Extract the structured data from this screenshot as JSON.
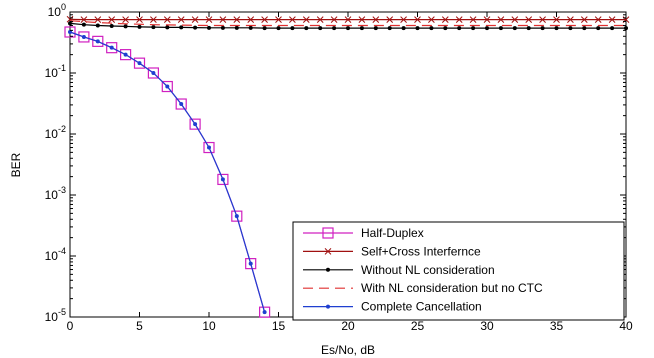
{
  "chart_data": {
    "type": "line",
    "title": "",
    "xlabel": "Es/No, dB",
    "ylabel": "BER",
    "xlim": [
      0,
      40
    ],
    "ylim": [
      1e-05,
      1
    ],
    "yscale": "log",
    "grid": false,
    "legend_position": "bottom-right",
    "x_ticks": [
      0,
      5,
      10,
      15,
      20,
      25,
      30,
      35,
      40
    ],
    "x_tick_labels": [
      "0",
      "5",
      "10",
      "15",
      "20",
      "25",
      "30",
      "35",
      "40"
    ],
    "y_ticks": [
      1e-05,
      0.0001,
      0.001,
      0.01,
      0.1,
      1
    ],
    "y_tick_labels": [
      {
        "base": "10",
        "exp": "-5"
      },
      {
        "base": "10",
        "exp": "-4"
      },
      {
        "base": "10",
        "exp": "-3"
      },
      {
        "base": "10",
        "exp": "-2"
      },
      {
        "base": "10",
        "exp": "-1"
      },
      {
        "base": "10",
        "exp": "0"
      }
    ],
    "series": [
      {
        "name": "Half-Duplex",
        "color": "#d020c0",
        "line_style": "solid",
        "marker": "square",
        "x": [
          0,
          1,
          2,
          3,
          4,
          5,
          6,
          7,
          8,
          9,
          10,
          11,
          12,
          13,
          14
        ],
        "y": [
          0.47,
          0.39,
          0.33,
          0.26,
          0.2,
          0.145,
          0.1,
          0.06,
          0.031,
          0.0145,
          0.006,
          0.0018,
          0.00045,
          7.5e-05,
          1.2e-05
        ]
      },
      {
        "name": "Self+Cross Interfernce",
        "color": "#a01010",
        "line_style": "solid",
        "marker": "x",
        "x": [
          0,
          1,
          2,
          3,
          4,
          5,
          6,
          7,
          8,
          9,
          10,
          11,
          12,
          13,
          14,
          15,
          16,
          17,
          18,
          19,
          20,
          21,
          22,
          23,
          24,
          25,
          26,
          27,
          28,
          29,
          30,
          31,
          32,
          33,
          34,
          35,
          36,
          37,
          38,
          39,
          40
        ],
        "y": [
          0.76,
          0.75,
          0.75,
          0.75,
          0.75,
          0.75,
          0.75,
          0.75,
          0.75,
          0.75,
          0.75,
          0.75,
          0.75,
          0.75,
          0.75,
          0.75,
          0.75,
          0.75,
          0.75,
          0.75,
          0.75,
          0.75,
          0.75,
          0.75,
          0.75,
          0.75,
          0.75,
          0.75,
          0.75,
          0.75,
          0.75,
          0.75,
          0.75,
          0.75,
          0.75,
          0.75,
          0.75,
          0.75,
          0.75,
          0.75,
          0.75
        ]
      },
      {
        "name": "Without NL consideration",
        "color": "#000000",
        "line_style": "solid",
        "marker": "dot",
        "x": [
          0,
          1,
          2,
          3,
          4,
          5,
          6,
          7,
          8,
          9,
          10,
          11,
          12,
          13,
          14,
          15,
          16,
          17,
          18,
          19,
          20,
          21,
          22,
          23,
          24,
          25,
          26,
          27,
          28,
          29,
          30,
          31,
          32,
          33,
          34,
          35,
          36,
          37,
          38,
          39,
          40
        ],
        "y": [
          0.65,
          0.62,
          0.6,
          0.59,
          0.58,
          0.57,
          0.565,
          0.56,
          0.56,
          0.555,
          0.55,
          0.55,
          0.55,
          0.55,
          0.545,
          0.545,
          0.545,
          0.545,
          0.545,
          0.545,
          0.545,
          0.545,
          0.545,
          0.545,
          0.545,
          0.545,
          0.545,
          0.545,
          0.545,
          0.545,
          0.545,
          0.545,
          0.545,
          0.545,
          0.545,
          0.545,
          0.545,
          0.545,
          0.545,
          0.545,
          0.545
        ]
      },
      {
        "name": "With NL consideration but  no CTC",
        "color": "#e03030",
        "line_style": "dashed",
        "marker": "none",
        "x": [
          0,
          2,
          4,
          6,
          8,
          10,
          12,
          14,
          16,
          18,
          20,
          22,
          24,
          26,
          28,
          30,
          32,
          34,
          36,
          38,
          40
        ],
        "y": [
          0.72,
          0.67,
          0.64,
          0.62,
          0.61,
          0.6,
          0.6,
          0.6,
          0.6,
          0.6,
          0.6,
          0.6,
          0.6,
          0.6,
          0.6,
          0.6,
          0.6,
          0.6,
          0.6,
          0.6,
          0.6
        ]
      },
      {
        "name": "Complete Cancellation",
        "color": "#1f3fd0",
        "line_style": "solid",
        "marker": "dot",
        "x": [
          0,
          1,
          2,
          3,
          4,
          5,
          6,
          7,
          8,
          9,
          10,
          11,
          12,
          13,
          14
        ],
        "y": [
          0.47,
          0.39,
          0.33,
          0.26,
          0.2,
          0.145,
          0.1,
          0.06,
          0.031,
          0.0145,
          0.006,
          0.0018,
          0.00045,
          7.5e-05,
          1.2e-05
        ]
      }
    ]
  }
}
